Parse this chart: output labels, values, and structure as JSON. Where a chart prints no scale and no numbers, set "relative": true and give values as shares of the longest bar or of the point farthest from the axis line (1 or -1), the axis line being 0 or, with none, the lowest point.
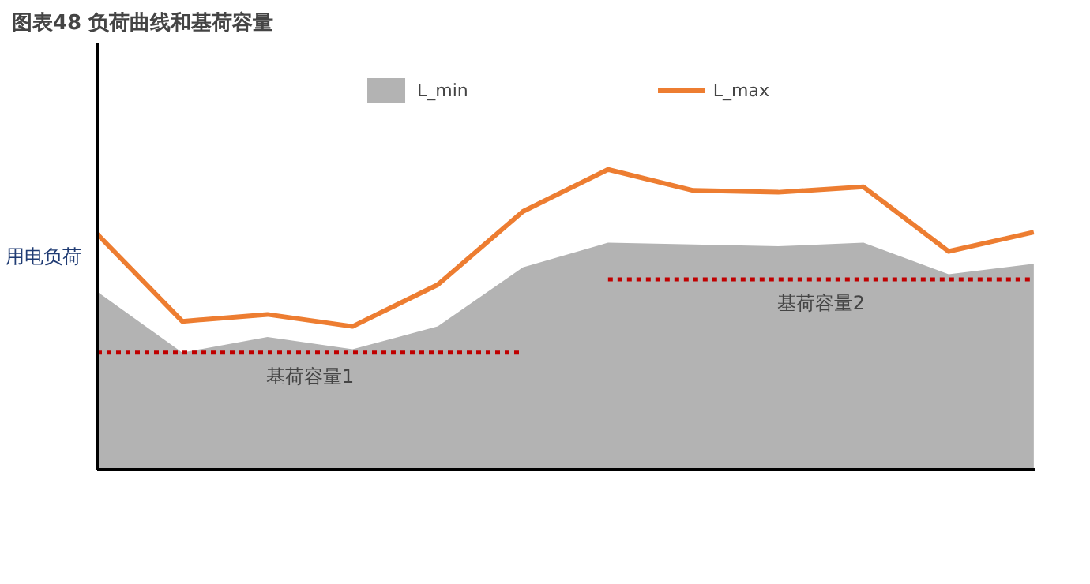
{
  "chart_data": {
    "type": "area",
    "title": "图表48    负荷曲线和基荷容量",
    "ylabel": "用电负荷",
    "relative": true,
    "categories": [
      null,
      null,
      null,
      null,
      null,
      null,
      null,
      null,
      null,
      null,
      null,
      null
    ],
    "grid": false,
    "legend": "top",
    "series": [
      {
        "name": "L_min",
        "color": "#b3b3b3",
        "values": [
          0.593,
          0.39,
          0.442,
          0.401,
          0.477,
          0.674,
          0.756,
          0.75,
          0.744,
          0.756,
          0.651,
          0.686
        ]
      },
      {
        "name": "L_max",
        "type": "line",
        "color": "#ed7d31",
        "values": [
          0.785,
          0.494,
          0.517,
          0.477,
          0.616,
          0.86,
          1,
          0.93,
          0.924,
          0.942,
          0.727,
          0.791
        ]
      },
      {
        "name": "基荷容量1",
        "type": "line",
        "line_style": "dotted",
        "color": "#c00000",
        "values": [
          0.39,
          0.39,
          0.39,
          0.39,
          0.39,
          0.39,
          null,
          null,
          null,
          null,
          null,
          null
        ]
      },
      {
        "name": "基荷容量2",
        "type": "line",
        "line_style": "dotted",
        "color": "#c00000",
        "values": [
          null,
          null,
          null,
          null,
          null,
          null,
          0.634,
          0.634,
          0.634,
          0.634,
          0.634,
          0.634
        ]
      }
    ]
  }
}
